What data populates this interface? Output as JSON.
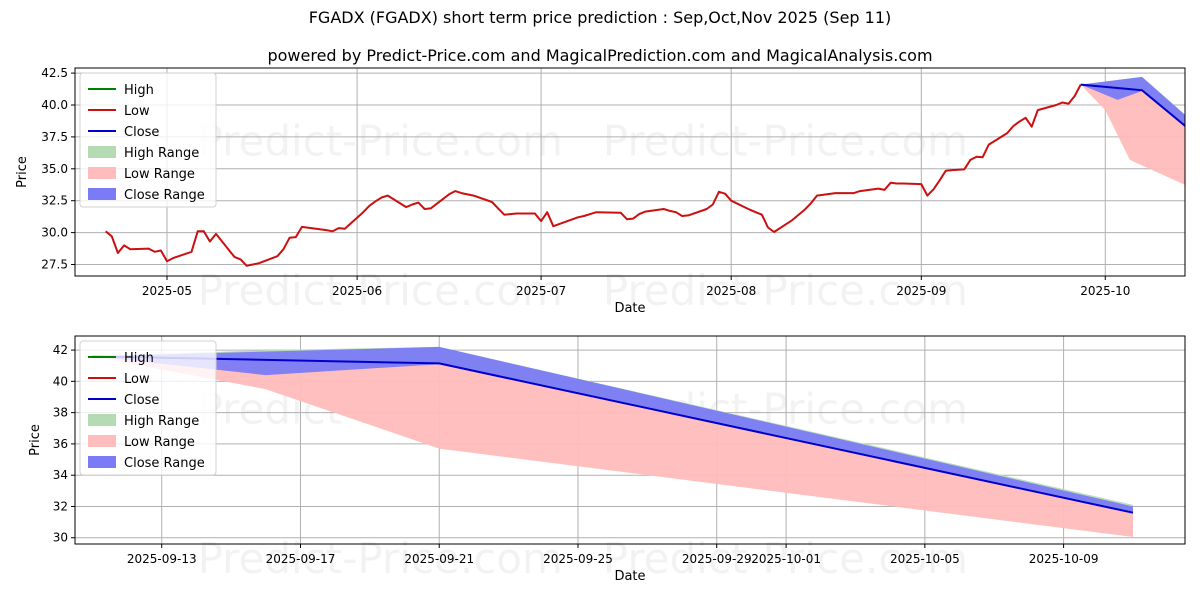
{
  "title": "FGADX (FGADX) short term price prediction : Sep,Oct,Nov 2025 (Sep 11)",
  "subtitle": "powered by Predict-Price.com and MagicalPrediction.com and MagicalAnalysis.com",
  "watermark": "Predict-Price.com",
  "colors": {
    "high": "#008000",
    "low": "#cc1010",
    "close": "#0000cc",
    "high_range": "#b5dbb5",
    "low_range": "#ffbcbc",
    "close_range": "#7b7bf5",
    "grid": "#b0b0b0"
  },
  "legend": [
    "High",
    "Low",
    "Close",
    "High Range",
    "Low Range",
    "Close Range"
  ],
  "chart_data": [
    {
      "type": "line",
      "xlabel": "Date",
      "ylabel": "Price",
      "xlim": [
        "2025-04-16",
        "2025-10-14"
      ],
      "ylim": [
        26.6,
        42.9
      ],
      "xticks": [
        "2025-05",
        "2025-06",
        "2025-07",
        "2025-08",
        "2025-09",
        "2025-10"
      ],
      "xtick_dates": [
        "2025-05-01",
        "2025-06-01",
        "2025-07-01",
        "2025-08-01",
        "2025-09-01",
        "2025-10-01"
      ],
      "yticks": [
        27.5,
        30.0,
        32.5,
        35.0,
        37.5,
        40.0,
        42.5
      ],
      "ytick_labels": [
        "27.5",
        "30.0",
        "32.5",
        "35.0",
        "37.5",
        "40.0",
        "42.5"
      ],
      "grid": true,
      "legend_position": "top-left",
      "series": [
        {
          "name": "Low",
          "points": [
            [
              "2025-04-21",
              30.1
            ],
            [
              "2025-04-22",
              29.7
            ],
            [
              "2025-04-23",
              28.4
            ],
            [
              "2025-04-24",
              29.0
            ],
            [
              "2025-04-25",
              28.7
            ],
            [
              "2025-04-28",
              28.75
            ],
            [
              "2025-04-29",
              28.5
            ],
            [
              "2025-04-30",
              28.6
            ],
            [
              "2025-05-01",
              27.75
            ],
            [
              "2025-05-02",
              28.0
            ],
            [
              "2025-05-05",
              28.5
            ],
            [
              "2025-05-06",
              30.1
            ],
            [
              "2025-05-07",
              30.1
            ],
            [
              "2025-05-08",
              29.3
            ],
            [
              "2025-05-09",
              29.9
            ],
            [
              "2025-05-12",
              28.1
            ],
            [
              "2025-05-13",
              27.9
            ],
            [
              "2025-05-14",
              27.4
            ],
            [
              "2025-05-15",
              27.5
            ],
            [
              "2025-05-16",
              27.6
            ],
            [
              "2025-05-19",
              28.15
            ],
            [
              "2025-05-20",
              28.7
            ],
            [
              "2025-05-21",
              29.6
            ],
            [
              "2025-05-22",
              29.65
            ],
            [
              "2025-05-23",
              30.45
            ],
            [
              "2025-05-27",
              30.2
            ],
            [
              "2025-05-28",
              30.1
            ],
            [
              "2025-05-29",
              30.35
            ],
            [
              "2025-05-30",
              30.3
            ],
            [
              "2025-06-02",
              31.6
            ],
            [
              "2025-06-03",
              32.1
            ],
            [
              "2025-06-04",
              32.45
            ],
            [
              "2025-06-05",
              32.75
            ],
            [
              "2025-06-06",
              32.9
            ],
            [
              "2025-06-09",
              32.0
            ],
            [
              "2025-06-10",
              32.2
            ],
            [
              "2025-06-11",
              32.35
            ],
            [
              "2025-06-12",
              31.85
            ],
            [
              "2025-06-13",
              31.9
            ],
            [
              "2025-06-16",
              33.0
            ],
            [
              "2025-06-17",
              33.25
            ],
            [
              "2025-06-18",
              33.1
            ],
            [
              "2025-06-20",
              32.9
            ],
            [
              "2025-06-23",
              32.4
            ],
            [
              "2025-06-24",
              31.9
            ],
            [
              "2025-06-25",
              31.4
            ],
            [
              "2025-06-26",
              31.45
            ],
            [
              "2025-06-27",
              31.5
            ],
            [
              "2025-06-30",
              31.5
            ],
            [
              "2025-07-01",
              30.9
            ],
            [
              "2025-07-02",
              31.6
            ],
            [
              "2025-07-03",
              30.5
            ],
            [
              "2025-07-07",
              31.2
            ],
            [
              "2025-07-08",
              31.3
            ],
            [
              "2025-07-09",
              31.45
            ],
            [
              "2025-07-10",
              31.6
            ],
            [
              "2025-07-14",
              31.55
            ],
            [
              "2025-07-15",
              31.05
            ],
            [
              "2025-07-16",
              31.1
            ],
            [
              "2025-07-17",
              31.45
            ],
            [
              "2025-07-18",
              31.65
            ],
            [
              "2025-07-21",
              31.85
            ],
            [
              "2025-07-22",
              31.7
            ],
            [
              "2025-07-23",
              31.6
            ],
            [
              "2025-07-24",
              31.3
            ],
            [
              "2025-07-25",
              31.35
            ],
            [
              "2025-07-28",
              31.85
            ],
            [
              "2025-07-29",
              32.2
            ],
            [
              "2025-07-30",
              33.2
            ],
            [
              "2025-07-31",
              33.05
            ],
            [
              "2025-08-01",
              32.5
            ],
            [
              "2025-08-04",
              31.8
            ],
            [
              "2025-08-05",
              31.6
            ],
            [
              "2025-08-06",
              31.4
            ],
            [
              "2025-08-07",
              30.4
            ],
            [
              "2025-08-08",
              30.05
            ],
            [
              "2025-08-11",
              31.0
            ],
            [
              "2025-08-12",
              31.4
            ],
            [
              "2025-08-13",
              31.8
            ],
            [
              "2025-08-14",
              32.3
            ],
            [
              "2025-08-15",
              32.9
            ],
            [
              "2025-08-18",
              33.1
            ],
            [
              "2025-08-19",
              33.1
            ],
            [
              "2025-08-20",
              33.1
            ],
            [
              "2025-08-21",
              33.1
            ],
            [
              "2025-08-22",
              33.25
            ],
            [
              "2025-08-25",
              33.45
            ],
            [
              "2025-08-26",
              33.35
            ],
            [
              "2025-08-27",
              33.9
            ],
            [
              "2025-08-28",
              33.85
            ],
            [
              "2025-08-29",
              33.85
            ],
            [
              "2025-09-01",
              33.8
            ],
            [
              "2025-09-02",
              32.9
            ],
            [
              "2025-09-03",
              33.4
            ],
            [
              "2025-09-04",
              34.1
            ],
            [
              "2025-09-05",
              34.85
            ],
            [
              "2025-09-06",
              34.9
            ],
            [
              "2025-09-08",
              34.95
            ],
            [
              "2025-09-09",
              35.7
            ],
            [
              "2025-09-10",
              35.95
            ],
            [
              "2025-09-11",
              35.9
            ],
            [
              "2025-09-12",
              36.9
            ],
            [
              "2025-09-15",
              37.8
            ],
            [
              "2025-09-16",
              38.35
            ],
            [
              "2025-09-17",
              38.7
            ],
            [
              "2025-09-18",
              39.0
            ],
            [
              "2025-09-19",
              38.3
            ],
            [
              "2025-09-20",
              39.6
            ],
            [
              "2025-09-23",
              40.0
            ],
            [
              "2025-09-24",
              40.2
            ],
            [
              "2025-09-25",
              40.1
            ],
            [
              "2025-09-26",
              40.7
            ],
            [
              "2025-09-27",
              41.6
            ]
          ]
        },
        {
          "name": "Close",
          "points": [
            [
              "2025-09-27",
              41.6
            ],
            [
              "2025-10-07",
              41.15
            ],
            [
              "2025-10-31",
              31.6
            ]
          ]
        }
      ],
      "ranges": [
        {
          "name": "High Range",
          "upper": [
            [
              "2025-09-27",
              41.6
            ],
            [
              "2025-10-07",
              42.2
            ],
            [
              "2025-10-31",
              32.1
            ]
          ],
          "lower": [
            [
              "2025-09-27",
              41.6
            ],
            [
              "2025-10-07",
              41.1
            ],
            [
              "2025-10-31",
              31.6
            ]
          ]
        },
        {
          "name": "Low Range",
          "upper": [
            [
              "2025-09-27",
              41.6
            ],
            [
              "2025-10-07",
              41.1
            ],
            [
              "2025-10-31",
              31.6
            ]
          ],
          "lower": [
            [
              "2025-09-27",
              41.6
            ],
            [
              "2025-10-01",
              39.6
            ],
            [
              "2025-10-05",
              35.7
            ],
            [
              "2025-10-31",
              30.05
            ]
          ]
        },
        {
          "name": "Close Range",
          "upper": [
            [
              "2025-09-27",
              41.6
            ],
            [
              "2025-10-07",
              42.2
            ],
            [
              "2025-10-31",
              32.0
            ]
          ],
          "lower": [
            [
              "2025-09-27",
              41.6
            ],
            [
              "2025-10-03",
              40.4
            ],
            [
              "2025-10-07",
              41.1
            ],
            [
              "2025-10-31",
              31.6
            ]
          ]
        }
      ]
    },
    {
      "type": "line",
      "xlabel": "Date",
      "ylabel": "Price",
      "xlim": [
        "2025-09-10 12:00",
        "2025-10-12 12:00"
      ],
      "ylim": [
        29.6,
        42.9
      ],
      "xticks": [
        "2025-09-13",
        "2025-09-17",
        "2025-09-21",
        "2025-09-25",
        "2025-09-29",
        "2025-10-01",
        "2025-10-05",
        "2025-10-09"
      ],
      "xtick_dates": [
        "2025-09-13",
        "2025-09-17",
        "2025-09-21",
        "2025-09-25",
        "2025-09-29",
        "2025-10-01",
        "2025-10-05",
        "2025-10-09"
      ],
      "yticks": [
        30,
        32,
        34,
        36,
        38,
        40,
        42
      ],
      "ytick_labels": [
        "30",
        "32",
        "34",
        "36",
        "38",
        "40",
        "42"
      ],
      "grid": true,
      "legend_position": "top-left",
      "series": [
        {
          "name": "Close",
          "points": [
            [
              "2025-09-11",
              41.6
            ],
            [
              "2025-09-21",
              41.15
            ],
            [
              "2025-10-11",
              31.6
            ]
          ]
        }
      ],
      "ranges": [
        {
          "name": "High Range",
          "upper": [
            [
              "2025-09-11",
              41.6
            ],
            [
              "2025-09-16",
              42.0
            ],
            [
              "2025-09-21",
              42.2
            ],
            [
              "2025-10-11",
              32.1
            ]
          ],
          "lower": [
            [
              "2025-09-11",
              41.6
            ],
            [
              "2025-09-21",
              41.1
            ],
            [
              "2025-10-11",
              31.6
            ]
          ]
        },
        {
          "name": "Low Range",
          "upper": [
            [
              "2025-09-11",
              41.6
            ],
            [
              "2025-09-21",
              41.1
            ],
            [
              "2025-10-11",
              31.6
            ]
          ],
          "lower": [
            [
              "2025-09-11",
              41.6
            ],
            [
              "2025-09-16",
              39.5
            ],
            [
              "2025-09-21",
              35.7
            ],
            [
              "2025-10-11",
              30.05
            ]
          ]
        },
        {
          "name": "Close Range",
          "upper": [
            [
              "2025-09-11",
              41.6
            ],
            [
              "2025-09-21",
              42.2
            ],
            [
              "2025-10-11",
              32.0
            ]
          ],
          "lower": [
            [
              "2025-09-11",
              41.6
            ],
            [
              "2025-09-16",
              40.4
            ],
            [
              "2025-09-21",
              41.1
            ],
            [
              "2025-10-11",
              31.6
            ]
          ]
        }
      ]
    }
  ]
}
